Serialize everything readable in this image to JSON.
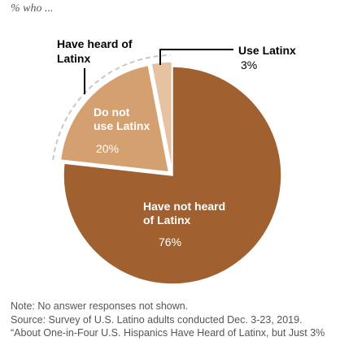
{
  "subtitle": "% who ...",
  "chart_data": {
    "type": "pie",
    "slices": [
      {
        "label_lines": [
          "Have not heard",
          "of Latinx"
        ],
        "value": 76,
        "value_text": "76%",
        "color": "#a0602f"
      },
      {
        "label_lines": [
          "Do not",
          "use Latinx"
        ],
        "value": 20,
        "value_text": "20%",
        "color": "#d4a06f"
      },
      {
        "label_lines": [
          "Use Latinx"
        ],
        "value": 3,
        "value_text": "3%",
        "color": "#e6c2a2"
      }
    ],
    "group_annotation": [
      "Have heard of",
      "Latinx"
    ]
  },
  "footer": {
    "note": "Note: No answer responses not shown.",
    "source": "Source: Survey of U.S. Latino adults conducted Dec. 3-23, 2019.",
    "citation": "“About One-in-Four U.S. Hispanics Have Heard of Latinx, but Just 3%"
  }
}
